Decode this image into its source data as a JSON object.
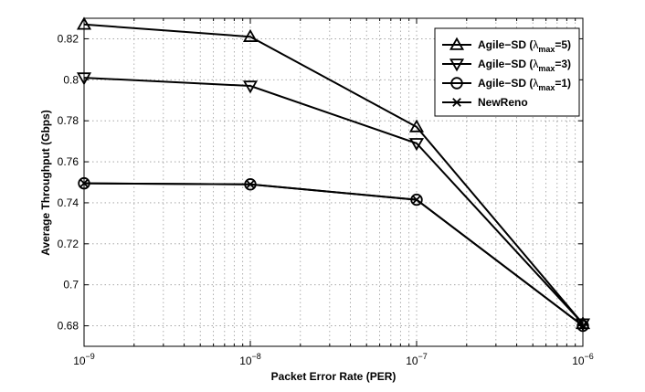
{
  "chart_data": {
    "type": "line",
    "xlabel": "Packet Error Rate (PER)",
    "ylabel": "Average Throughput (Gbps)",
    "xscale": "log",
    "xlim": [
      1e-09,
      1e-06
    ],
    "ylim": [
      0.67,
      0.83
    ],
    "x": [
      1e-09,
      1e-08,
      1e-07,
      1e-06
    ],
    "x_tick_labels": [
      {
        "value": 1e-09,
        "base": "10",
        "exp": "−9"
      },
      {
        "value": 1e-08,
        "base": "10",
        "exp": "−8"
      },
      {
        "value": 1e-07,
        "base": "10",
        "exp": "−7"
      },
      {
        "value": 1e-06,
        "base": "10",
        "exp": "−6"
      }
    ],
    "y_ticks": [
      0.68,
      0.7,
      0.72,
      0.74,
      0.76,
      0.78,
      0.8,
      0.82
    ],
    "y_tick_labels": [
      "0.68",
      "0.7",
      "0.72",
      "0.74",
      "0.76",
      "0.78",
      "0.8",
      "0.82"
    ],
    "grid": true,
    "legend_position": "top-right",
    "series": [
      {
        "legend_prefix": "Agile−SD (",
        "legend_sym": "λ",
        "legend_sub": "max",
        "legend_suffix": "=5)",
        "marker": "triangle-up",
        "values": [
          0.827,
          0.821,
          0.777,
          0.681
        ]
      },
      {
        "legend_prefix": "Agile−SD (",
        "legend_sym": "λ",
        "legend_sub": "max",
        "legend_suffix": "=3)",
        "marker": "triangle-down",
        "values": [
          0.801,
          0.797,
          0.769,
          0.681
        ]
      },
      {
        "legend_prefix": "Agile−SD (",
        "legend_sym": "λ",
        "legend_sub": "max",
        "legend_suffix": "=1)",
        "marker": "circle",
        "values": [
          0.7495,
          0.749,
          0.7415,
          0.68
        ]
      },
      {
        "legend_prefix": "NewReno",
        "legend_sym": "",
        "legend_sub": "",
        "legend_suffix": "",
        "marker": "x",
        "values": [
          0.7495,
          0.749,
          0.7415,
          0.68
        ]
      }
    ]
  }
}
